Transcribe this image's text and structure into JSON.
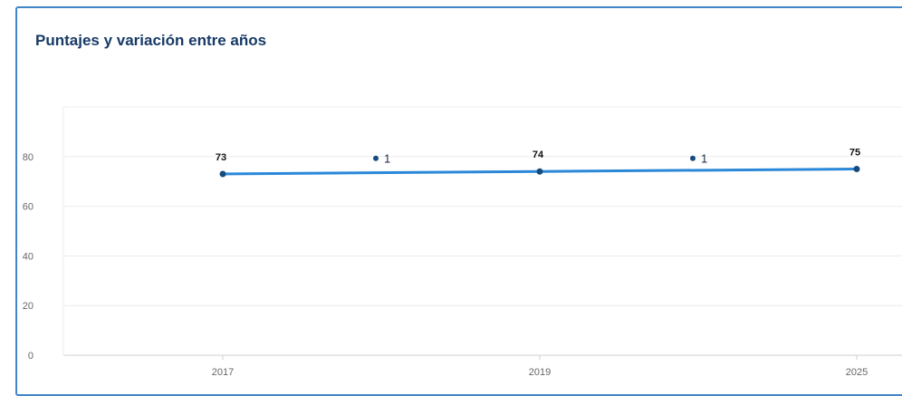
{
  "panel": {
    "title": "Puntajes y variación entre años"
  },
  "colors": {
    "line": "#2b88d9",
    "point": "#164b7e",
    "border": "#3f86c9",
    "title": "#173a66",
    "grid": "#ececec"
  },
  "chart_data": {
    "type": "line",
    "title": "Puntajes y variación entre años",
    "xlabel": "",
    "ylabel": "",
    "categories": [
      "2017",
      "2019",
      "2025"
    ],
    "values": [
      73,
      74,
      75
    ],
    "data_labels": [
      "73",
      "74",
      "75"
    ],
    "variations": [
      {
        "between": [
          "2017",
          "2019"
        ],
        "value": 1,
        "label": "1",
        "y": 80
      },
      {
        "between": [
          "2019",
          "2025"
        ],
        "value": 1,
        "label": "1",
        "y": 80
      }
    ],
    "yticks": [
      0,
      20,
      40,
      60,
      80
    ],
    "ylim": [
      0,
      100
    ],
    "grid": true,
    "legend": "none"
  }
}
